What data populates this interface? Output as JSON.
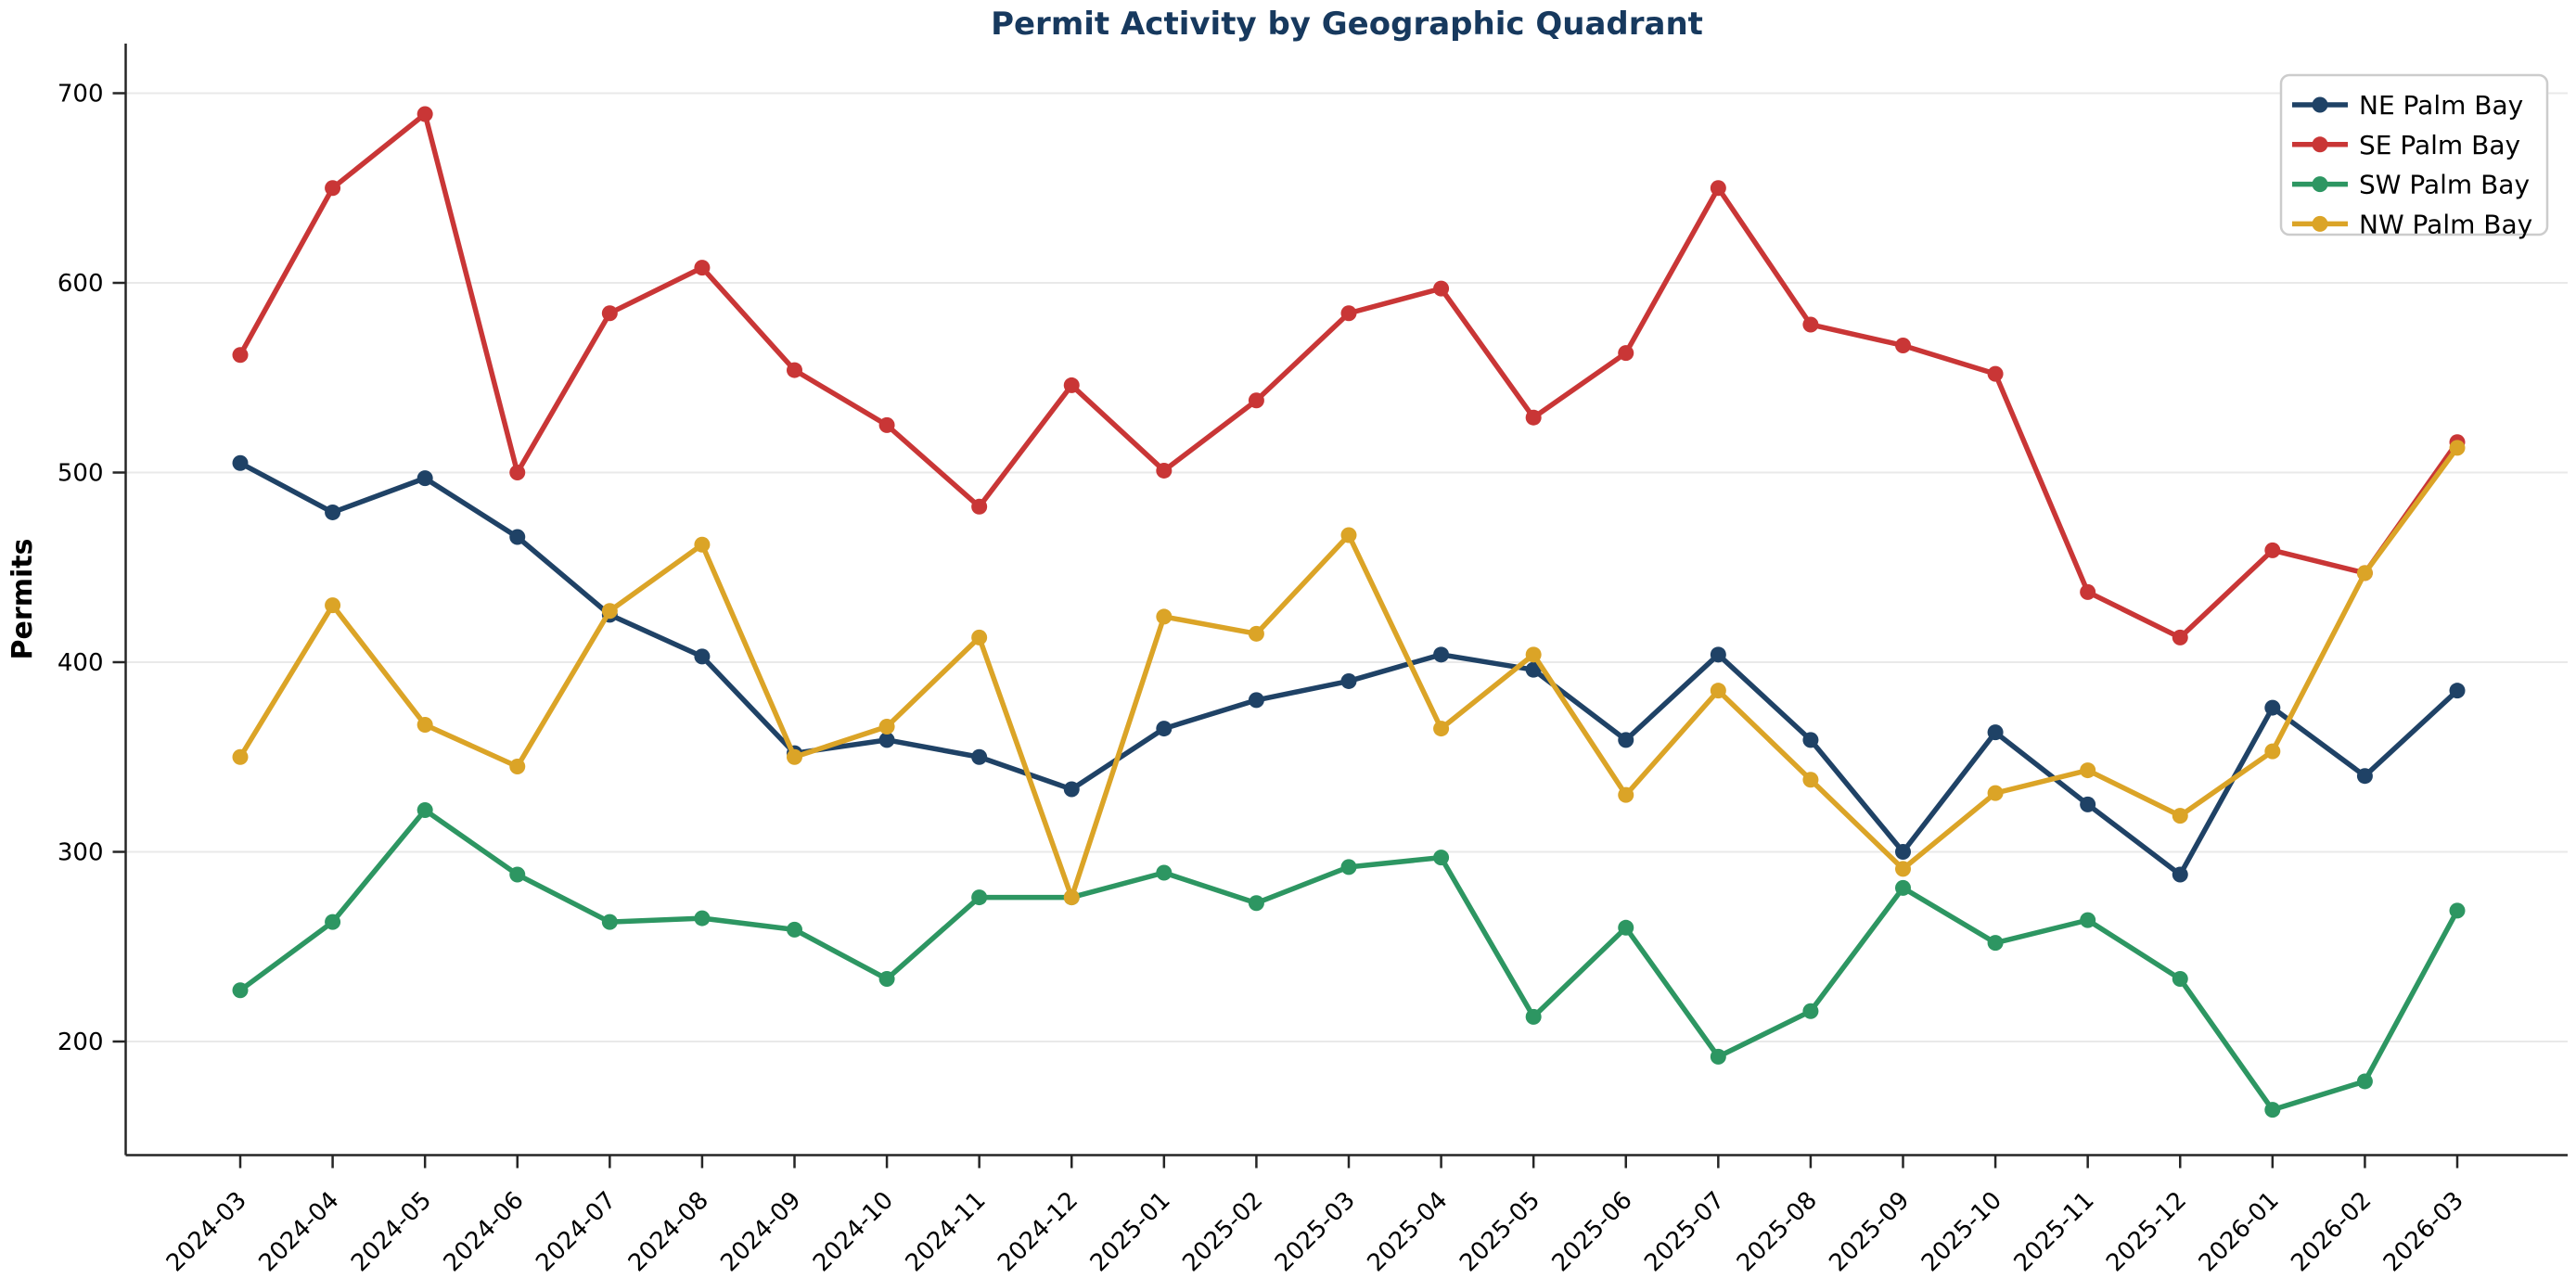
{
  "title": "Permit Activity by Geographic Quadrant",
  "title_color": "#17395e",
  "ylabel": "Permits",
  "axis_color": "#262626",
  "grid_color": "#e9e9e9",
  "legend": {
    "border_color": "#cccccc",
    "background": "#ffffff",
    "entries": [
      "NE Palm Bay",
      "SE Palm Bay",
      "SW Palm Bay",
      "NW Palm Bay"
    ]
  },
  "chart_data": {
    "type": "line",
    "title": "Permit Activity by Geographic Quadrant",
    "xlabel": "",
    "ylabel": "Permits",
    "grid": true,
    "legend_position": "upper right",
    "yticks": [
      200,
      300,
      400,
      500,
      600,
      700
    ],
    "ylim": [
      140,
      726
    ],
    "categories": [
      "2024-03",
      "2024-04",
      "2024-05",
      "2024-06",
      "2024-07",
      "2024-08",
      "2024-09",
      "2024-10",
      "2024-11",
      "2024-12",
      "2025-01",
      "2025-02",
      "2025-03",
      "2025-04",
      "2025-05",
      "2025-06",
      "2025-07",
      "2025-08",
      "2025-09",
      "2025-10",
      "2025-11",
      "2025-12",
      "2026-01",
      "2026-02",
      "2026-03"
    ],
    "series": [
      {
        "name": "NE Palm Bay",
        "color": "#1f4266",
        "values": [
          505,
          479,
          497,
          466,
          425,
          403,
          352,
          359,
          350,
          333,
          365,
          380,
          390,
          404,
          396,
          359,
          404,
          359,
          300,
          363,
          325,
          288,
          376,
          340,
          385
        ]
      },
      {
        "name": "SE Palm Bay",
        "color": "#c93636",
        "values": [
          562,
          650,
          689,
          500,
          584,
          608,
          554,
          525,
          482,
          546,
          501,
          538,
          584,
          597,
          529,
          563,
          650,
          578,
          567,
          552,
          437,
          413,
          459,
          447,
          516
        ]
      },
      {
        "name": "SW Palm Bay",
        "color": "#2d9662",
        "values": [
          227,
          263,
          322,
          288,
          263,
          265,
          259,
          233,
          276,
          276,
          289,
          273,
          292,
          297,
          213,
          260,
          192,
          216,
          281,
          252,
          264,
          233,
          164,
          179,
          269
        ]
      },
      {
        "name": "NW Palm Bay",
        "color": "#dba427",
        "values": [
          350,
          430,
          367,
          345,
          427,
          462,
          350,
          366,
          413,
          276,
          424,
          415,
          467,
          365,
          404,
          330,
          385,
          338,
          291,
          331,
          343,
          319,
          353,
          447,
          513
        ]
      }
    ]
  }
}
